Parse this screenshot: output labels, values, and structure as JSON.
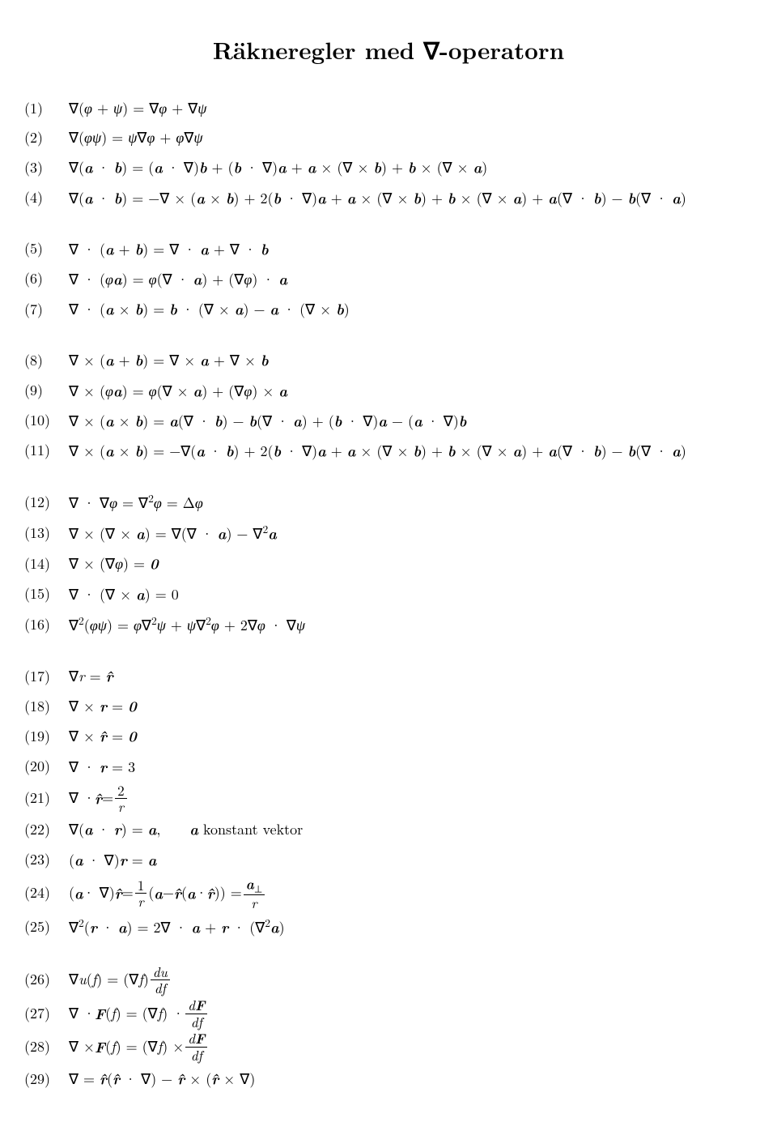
{
  "title": "Räkneregler med ∇-operatorn",
  "groups": [
    {
      "equations": [
        {
          "num": "(1)",
          "html": "∇(<span class='it'>φ</span> + <span class='it'>ψ</span>) = ∇<span class='it'>φ</span> + ∇<span class='it'>ψ</span>"
        },
        {
          "num": "(2)",
          "html": "∇(<span class='it'>φψ</span>) = <span class='it'>ψ</span>∇<span class='it'>φ</span> + <span class='it'>φ</span>∇<span class='it'>ψ</span>"
        },
        {
          "num": "(3)",
          "html": "∇(<span class='bold'>a</span> · <span class='bold'>b</span>) = (<span class='bold'>a</span> · ∇)<span class='bold'>b</span> + (<span class='bold'>b</span> · ∇)<span class='bold'>a</span> + <span class='bold'>a</span> × (∇ × <span class='bold'>b</span>) + <span class='bold'>b</span> × (∇ × <span class='bold'>a</span>)"
        },
        {
          "num": "(4)",
          "html": "∇(<span class='bold'>a</span> · <span class='bold'>b</span>) = −∇ × (<span class='bold'>a</span> × <span class='bold'>b</span>) + 2(<span class='bold'>b</span> · ∇)<span class='bold'>a</span> + <span class='bold'>a</span> × (∇ × <span class='bold'>b</span>) + <span class='bold'>b</span> × (∇ × <span class='bold'>a</span>) + <span class='bold'>a</span>(∇ · <span class='bold'>b</span>) − <span class='bold'>b</span>(∇ · <span class='bold'>a</span>)"
        }
      ]
    },
    {
      "equations": [
        {
          "num": "(5)",
          "html": "∇ · (<span class='bold'>a</span> + <span class='bold'>b</span>) = ∇ · <span class='bold'>a</span> + ∇ · <span class='bold'>b</span>"
        },
        {
          "num": "(6)",
          "html": "∇ · (<span class='it'>φ</span><span class='bold'>a</span>) = <span class='it'>φ</span>(∇ · <span class='bold'>a</span>) + (∇<span class='it'>φ</span>) · <span class='bold'>a</span>"
        },
        {
          "num": "(7)",
          "html": "∇ · (<span class='bold'>a</span> × <span class='bold'>b</span>) = <span class='bold'>b</span> · (∇ × <span class='bold'>a</span>) − <span class='bold'>a</span> · (∇ × <span class='bold'>b</span>)"
        }
      ]
    },
    {
      "equations": [
        {
          "num": "(8)",
          "html": "∇ × (<span class='bold'>a</span> + <span class='bold'>b</span>) = ∇ × <span class='bold'>a</span> + ∇ × <span class='bold'>b</span>"
        },
        {
          "num": "(9)",
          "html": "∇ × (<span class='it'>φ</span><span class='bold'>a</span>) = <span class='it'>φ</span>(∇ × <span class='bold'>a</span>) + (∇<span class='it'>φ</span>) × <span class='bold'>a</span>"
        },
        {
          "num": "(10)",
          "html": "∇ × (<span class='bold'>a</span> × <span class='bold'>b</span>) = <span class='bold'>a</span>(∇ · <span class='bold'>b</span>) − <span class='bold'>b</span>(∇ · <span class='bold'>a</span>) + (<span class='bold'>b</span> · ∇)<span class='bold'>a</span> − (<span class='bold'>a</span> · ∇)<span class='bold'>b</span>"
        },
        {
          "num": "(11)",
          "html": "∇ × (<span class='bold'>a</span> × <span class='bold'>b</span>) = −∇(<span class='bold'>a</span> · <span class='bold'>b</span>) + 2(<span class='bold'>b</span> · ∇)<span class='bold'>a</span> + <span class='bold'>a</span> × (∇ × <span class='bold'>b</span>) + <span class='bold'>b</span> × (∇ × <span class='bold'>a</span>) + <span class='bold'>a</span>(∇ · <span class='bold'>b</span>) − <span class='bold'>b</span>(∇ · <span class='bold'>a</span>)"
        }
      ]
    },
    {
      "equations": [
        {
          "num": "(12)",
          "html": "∇ · ∇<span class='it'>φ</span> = ∇<sup>2</sup><span class='it'>φ</span> = Δ<span class='it'>φ</span>"
        },
        {
          "num": "(13)",
          "html": "∇ × (∇ × <span class='bold'>a</span>) = ∇(∇ · <span class='bold'>a</span>) − ∇<sup>2</sup><span class='bold'>a</span>"
        },
        {
          "num": "(14)",
          "html": "∇ × (∇<span class='it'>φ</span>) = <span class='bold'>0</span>"
        },
        {
          "num": "(15)",
          "html": "∇ · (∇ × <span class='bold'>a</span>) = 0"
        },
        {
          "num": "(16)",
          "html": "∇<sup>2</sup>(<span class='it'>φψ</span>) = <span class='it'>φ</span>∇<sup>2</sup><span class='it'>ψ</span> + <span class='it'>ψ</span>∇<sup>2</sup><span class='it'>φ</span> + 2∇<span class='it'>φ</span> · ∇<span class='it'>ψ</span>"
        }
      ]
    },
    {
      "equations": [
        {
          "num": "(17)",
          "html": "∇<span class='it'>r</span> = <span class='bold'>r̂</span>"
        },
        {
          "num": "(18)",
          "html": "∇ × <span class='bold'>r</span> = <span class='bold'>0</span>"
        },
        {
          "num": "(19)",
          "html": "∇ × <span class='bold'>r̂</span> = <span class='bold'>0</span>"
        },
        {
          "num": "(20)",
          "html": "∇ · <span class='bold'>r</span> = 3"
        },
        {
          "num": "(21)",
          "html": "<span class='eq-block'>∇ · <span class='bold'>r̂</span> = <span class='frac'><span class='top'>2</span><span class='bot'><span class='it'>r</span></span></span></span>"
        },
        {
          "num": "(22)",
          "html": "∇(<span class='bold'>a</span> · <span class='bold'>r</span>) = <span class='bold'>a</span>,&nbsp;&nbsp;&nbsp;&nbsp;<span class='bold'>a</span> konstant vektor"
        },
        {
          "num": "(23)",
          "html": "(<span class='bold'>a</span> · ∇)<span class='bold'>r</span> = <span class='bold'>a</span>"
        },
        {
          "num": "(24)",
          "html": "<span class='eq-block'>(<span class='bold'>a</span> · ∇)<span class='bold'>r̂</span> = <span class='frac'><span class='top'>1</span><span class='bot'><span class='it'>r</span></span></span> (<span class='bold'>a</span> − <span class='bold'>r̂</span>(<span class='bold'>a</span> · <span class='bold'>r̂</span>)) = <span class='frac'><span class='top'><span class='bold'>a</span><sub>⊥</sub></span><span class='bot'><span class='it'>r</span></span></span></span>"
        },
        {
          "num": "(25)",
          "html": "∇<sup>2</sup>(<span class='bold'>r</span> · <span class='bold'>a</span>) = 2∇ · <span class='bold'>a</span> + <span class='bold'>r</span> · (∇<sup>2</sup><span class='bold'>a</span>)"
        }
      ]
    },
    {
      "equations": [
        {
          "num": "(26)",
          "html": "<span class='eq-block'>∇<span class='it'>u</span>(<span class='it'>f</span>) = (∇<span class='it'>f</span>)<span class='frac'><span class='top'><span class='it'>du</span></span><span class='bot'><span class='it'>df</span></span></span></span>"
        },
        {
          "num": "(27)",
          "html": "<span class='eq-block'>∇ · <span class='bold'>F</span>(<span class='it'>f</span>) = (∇<span class='it'>f</span>) · <span class='frac'><span class='top'><span class='it'>d</span><span class='bold'>F</span></span><span class='bot'><span class='it'>df</span></span></span></span>"
        },
        {
          "num": "(28)",
          "html": "<span class='eq-block'>∇ × <span class='bold'>F</span>(<span class='it'>f</span>) = (∇<span class='it'>f</span>) × <span class='frac'><span class='top'><span class='it'>d</span><span class='bold'>F</span></span><span class='bot'><span class='it'>df</span></span></span></span>"
        },
        {
          "num": "(29)",
          "html": "∇ = <span class='bold'>r̂</span>(<span class='bold'>r̂</span> · ∇) − <span class='bold'>r̂</span> × (<span class='bold'>r̂</span> × ∇)"
        }
      ]
    }
  ]
}
